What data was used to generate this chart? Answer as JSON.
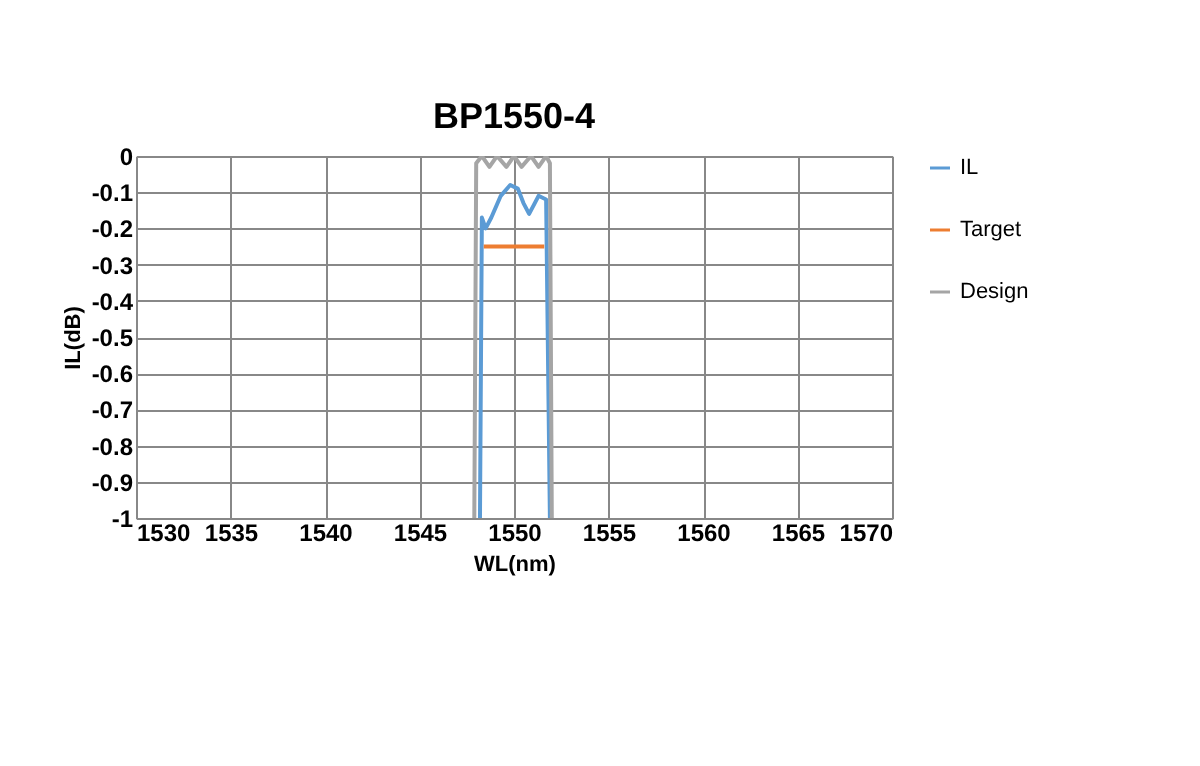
{
  "chart_data": {
    "type": "line",
    "title": "BP1550-4",
    "xlabel": "WL(nm)",
    "ylabel": "IL(dB)",
    "xlim": [
      1530,
      1570
    ],
    "xticks": [
      1530,
      1535,
      1540,
      1545,
      1550,
      1555,
      1560,
      1565,
      1570
    ],
    "ylim": [
      -1,
      0
    ],
    "yticks": [
      -1,
      -0.9,
      -0.8,
      -0.7,
      -0.6,
      -0.5,
      -0.4,
      -0.3,
      -0.2,
      -0.1,
      0
    ],
    "grid": true,
    "legend": "right",
    "marker": "none",
    "line_style": "solid",
    "series": [
      {
        "name": "IL",
        "color": "#5b9bd5",
        "x": [
          1548.2,
          1548.3,
          1548.5,
          1548.8,
          1549.3,
          1549.8,
          1550.2,
          1550.5,
          1550.8,
          1551.1,
          1551.3,
          1551.7,
          1551.9
        ],
        "values": [
          -1,
          -0.17,
          -0.2,
          -0.17,
          -0.11,
          -0.08,
          -0.09,
          -0.13,
          -0.16,
          -0.13,
          -0.11,
          -0.12,
          -1
        ]
      },
      {
        "name": "Target",
        "color": "#ed7d31",
        "x": [
          1548.4,
          1551.6
        ],
        "values": [
          -0.25,
          -0.25
        ]
      },
      {
        "name": "Design",
        "color": "#a5a5a5",
        "x": [
          1547.9,
          1548.0,
          1548.3,
          1548.7,
          1549.1,
          1549.6,
          1550.0,
          1550.4,
          1550.9,
          1551.3,
          1551.7,
          1551.9,
          1552.0
        ],
        "values": [
          -1,
          -0.02,
          0,
          -0.03,
          0,
          -0.03,
          0,
          -0.03,
          0,
          -0.03,
          0,
          -0.02,
          -1
        ]
      }
    ]
  }
}
